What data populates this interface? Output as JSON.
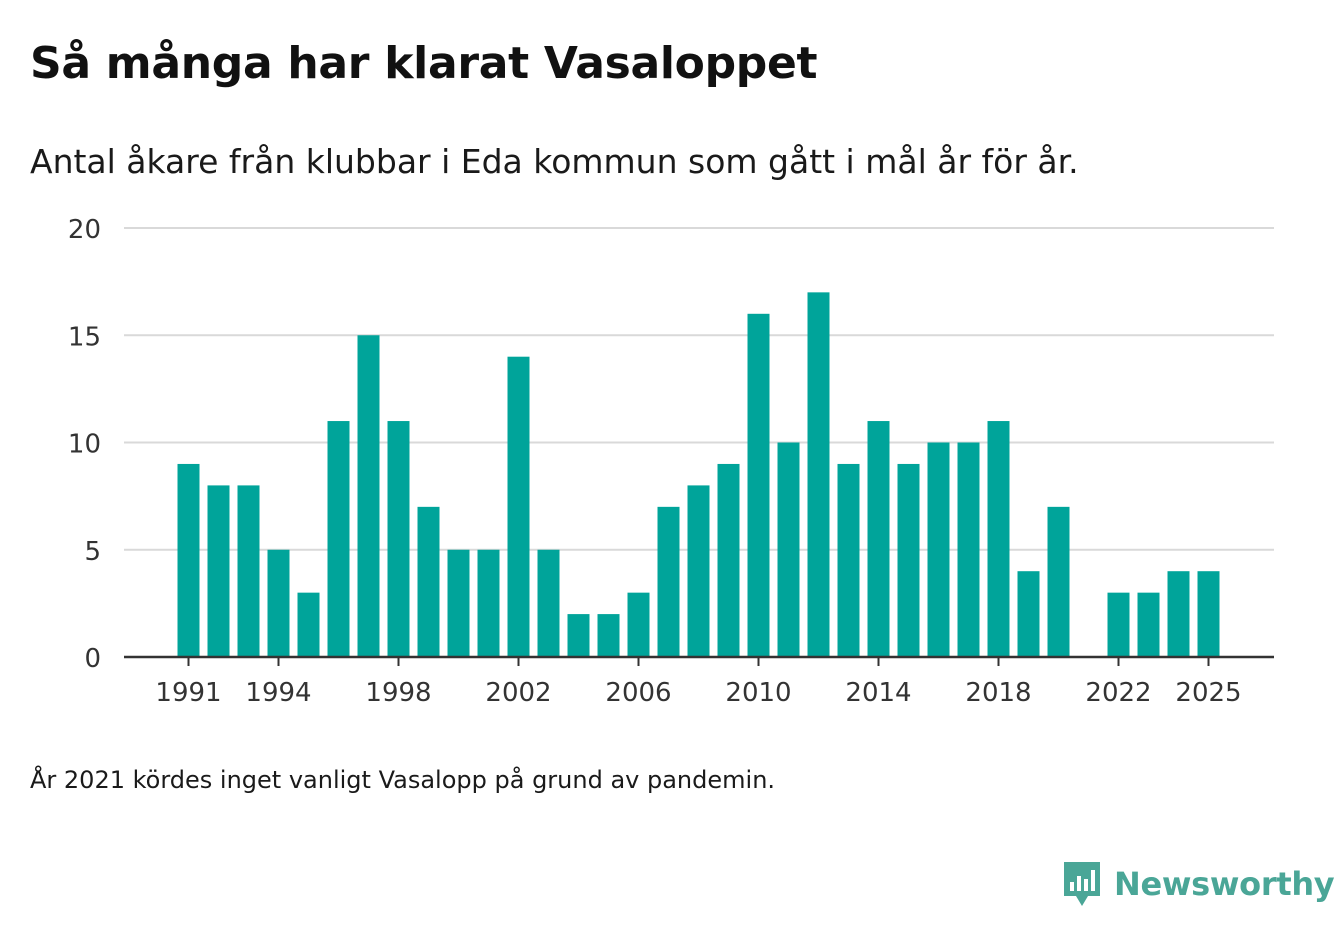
{
  "title": "Så många har klarat Vasaloppet",
  "subtitle": "Antal åkare från klubbar i Eda kommun som gått i mål år för år.",
  "note": "År 2021 kördes inget vanligt Vasalopp på grund av pandemin.",
  "brand": {
    "name": "Newsworthy",
    "icon": "newsworthy-logo-icon",
    "color": "#4aa697"
  },
  "chart_data": {
    "type": "bar",
    "title": "Så många har klarat Vasaloppet",
    "subtitle": "Antal åkare från klubbar i Eda kommun som gått i mål år för år.",
    "xlabel": "",
    "ylabel": "",
    "ylim": [
      0,
      20
    ],
    "yticks": [
      0,
      5,
      10,
      15,
      20
    ],
    "xticks": [
      1991,
      1994,
      1998,
      2002,
      2006,
      2010,
      2014,
      2018,
      2022,
      2025
    ],
    "grid": true,
    "bar_color": "#00a49a",
    "categories": [
      1991,
      1992,
      1993,
      1994,
      1995,
      1996,
      1997,
      1998,
      1999,
      2000,
      2001,
      2002,
      2003,
      2004,
      2005,
      2006,
      2007,
      2008,
      2009,
      2010,
      2011,
      2012,
      2013,
      2014,
      2015,
      2016,
      2017,
      2018,
      2019,
      2020,
      2021,
      2022,
      2023,
      2024,
      2025
    ],
    "values": [
      9,
      8,
      8,
      5,
      3,
      11,
      15,
      11,
      7,
      5,
      5,
      14,
      5,
      2,
      2,
      3,
      7,
      8,
      9,
      16,
      10,
      17,
      9,
      11,
      9,
      10,
      10,
      11,
      4,
      7,
      0,
      3,
      3,
      4,
      4
    ]
  }
}
